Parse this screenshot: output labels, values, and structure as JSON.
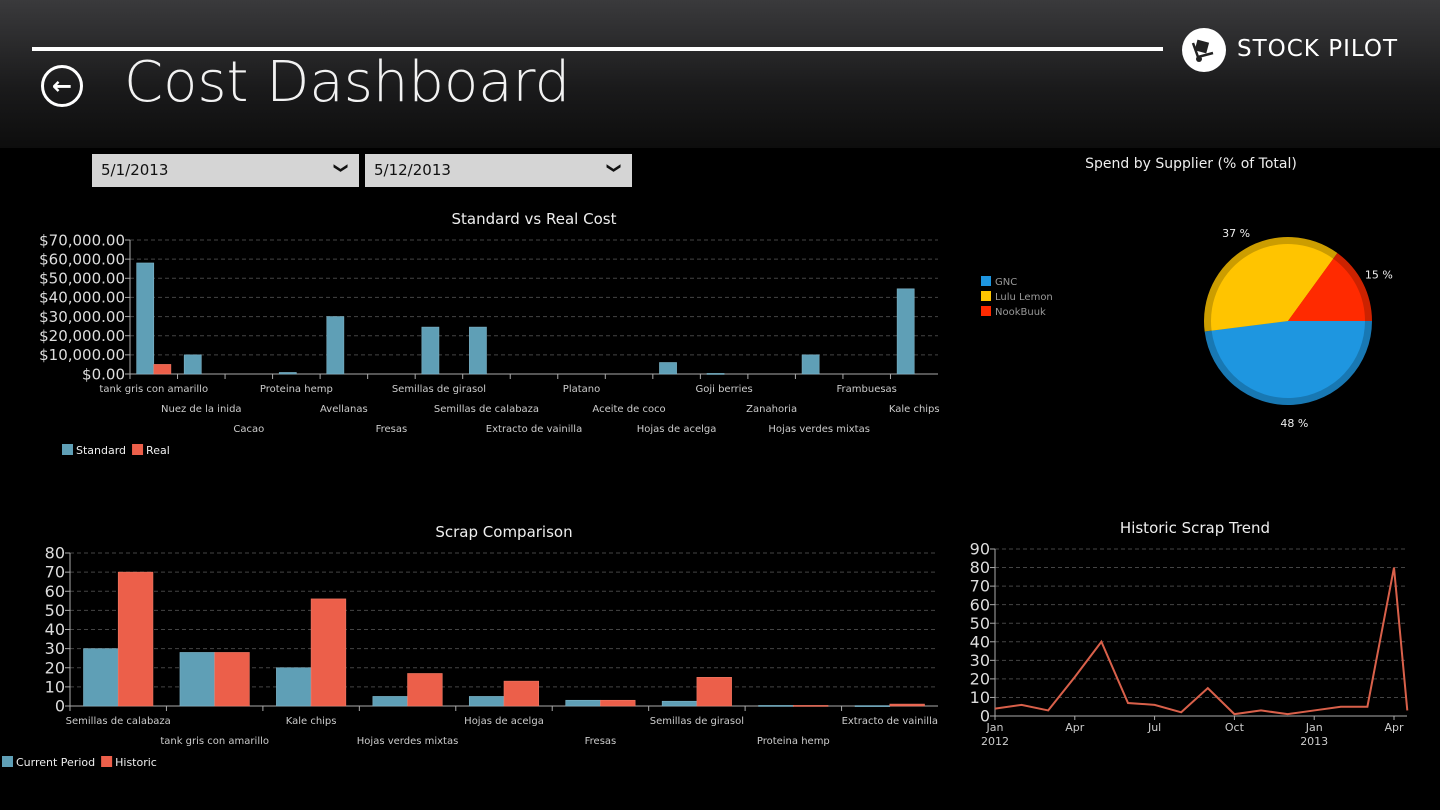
{
  "header": {
    "title": "Cost Dashboard",
    "brand": "STOCK PILOT"
  },
  "filters": {
    "start_date": "5/1/2013",
    "end_date": "5/12/2013"
  },
  "colors": {
    "standard": "#5f9fb6",
    "real": "#ec5f4a",
    "line": "#d9604a",
    "gnc": "#1e96e0",
    "lulu": "#ffc400",
    "nook": "#ff2a00"
  },
  "chart_data": [
    {
      "type": "bar",
      "title": "Standard vs Real Cost",
      "ylim": [
        0,
        70000
      ],
      "yticks": [
        "$0.00",
        "$10,000.00",
        "$20,000.00",
        "$30,000.00",
        "$40,000.00",
        "$50,000.00",
        "$60,000.00",
        "$70,000.00"
      ],
      "categories": [
        "tank gris con amarillo",
        "Nuez de la inida",
        "Cacao",
        "Proteina hemp",
        "Avellanas",
        "Fresas",
        "Semillas de girasol",
        "Semillas de calabaza",
        "Extracto de vainilla",
        "Platano",
        "Aceite de coco",
        "Hojas de acelga",
        "Goji berries",
        "Zanahoria",
        "Hojas verdes mixtas",
        "Frambuesas",
        "Kale chips"
      ],
      "series": [
        {
          "name": "Standard",
          "values": [
            58000,
            10000,
            0,
            800,
            30000,
            0,
            24500,
            24500,
            0,
            0,
            0,
            6000,
            300,
            0,
            10000,
            0,
            44500
          ]
        },
        {
          "name": "Real",
          "values": [
            5000,
            0,
            0,
            0,
            0,
            0,
            0,
            0,
            0,
            0,
            0,
            0,
            0,
            0,
            0,
            0,
            0
          ]
        }
      ],
      "legend": "bottom-left"
    },
    {
      "type": "bar",
      "title": "Scrap Comparison",
      "ylim": [
        0,
        80
      ],
      "yticks": [
        "0",
        "10",
        "20",
        "30",
        "40",
        "50",
        "60",
        "70",
        "80"
      ],
      "categories": [
        "Semillas de calabaza",
        "tank gris con amarillo",
        "Kale chips",
        "Hojas verdes mixtas",
        "Hojas de acelga",
        "Fresas",
        "Semillas de girasol",
        "Proteina hemp",
        "Extracto de vainilla"
      ],
      "series": [
        {
          "name": "Current Period",
          "values": [
            30,
            28,
            20,
            5,
            5,
            3,
            2.5,
            0.3,
            0.2
          ]
        },
        {
          "name": "Historic",
          "values": [
            70,
            28,
            56,
            17,
            13,
            3,
            15,
            0.3,
            1
          ]
        }
      ],
      "legend": "bottom-left"
    },
    {
      "type": "pie",
      "title": "Spend by Supplier (% of Total)",
      "slices": [
        {
          "name": "GNC",
          "value": 48,
          "label": "48 %"
        },
        {
          "name": "Lulu Lemon",
          "value": 37,
          "label": "37 %"
        },
        {
          "name": "NookBuuk",
          "value": 15,
          "label": "15 %"
        }
      ],
      "legend": "left"
    },
    {
      "type": "line",
      "title": "Historic Scrap Trend",
      "ylim": [
        0,
        90
      ],
      "yticks": [
        "0",
        "10",
        "20",
        "30",
        "40",
        "50",
        "60",
        "70",
        "80",
        "90"
      ],
      "xticks": [
        {
          "m": 0,
          "label": "Jan",
          "sub": "2012"
        },
        {
          "m": 3,
          "label": "Apr"
        },
        {
          "m": 6,
          "label": "Jul"
        },
        {
          "m": 9,
          "label": "Oct"
        },
        {
          "m": 12,
          "label": "Jan",
          "sub": "2013"
        },
        {
          "m": 15,
          "label": "Apr"
        }
      ],
      "x": [
        0,
        1,
        2,
        3,
        4,
        5,
        6,
        7,
        8,
        9,
        10,
        11,
        12,
        13,
        14,
        15,
        15.5
      ],
      "values": [
        4,
        6,
        3,
        21,
        40,
        7,
        6,
        2,
        15,
        1,
        3,
        1,
        3,
        5,
        5,
        80,
        3
      ]
    }
  ]
}
